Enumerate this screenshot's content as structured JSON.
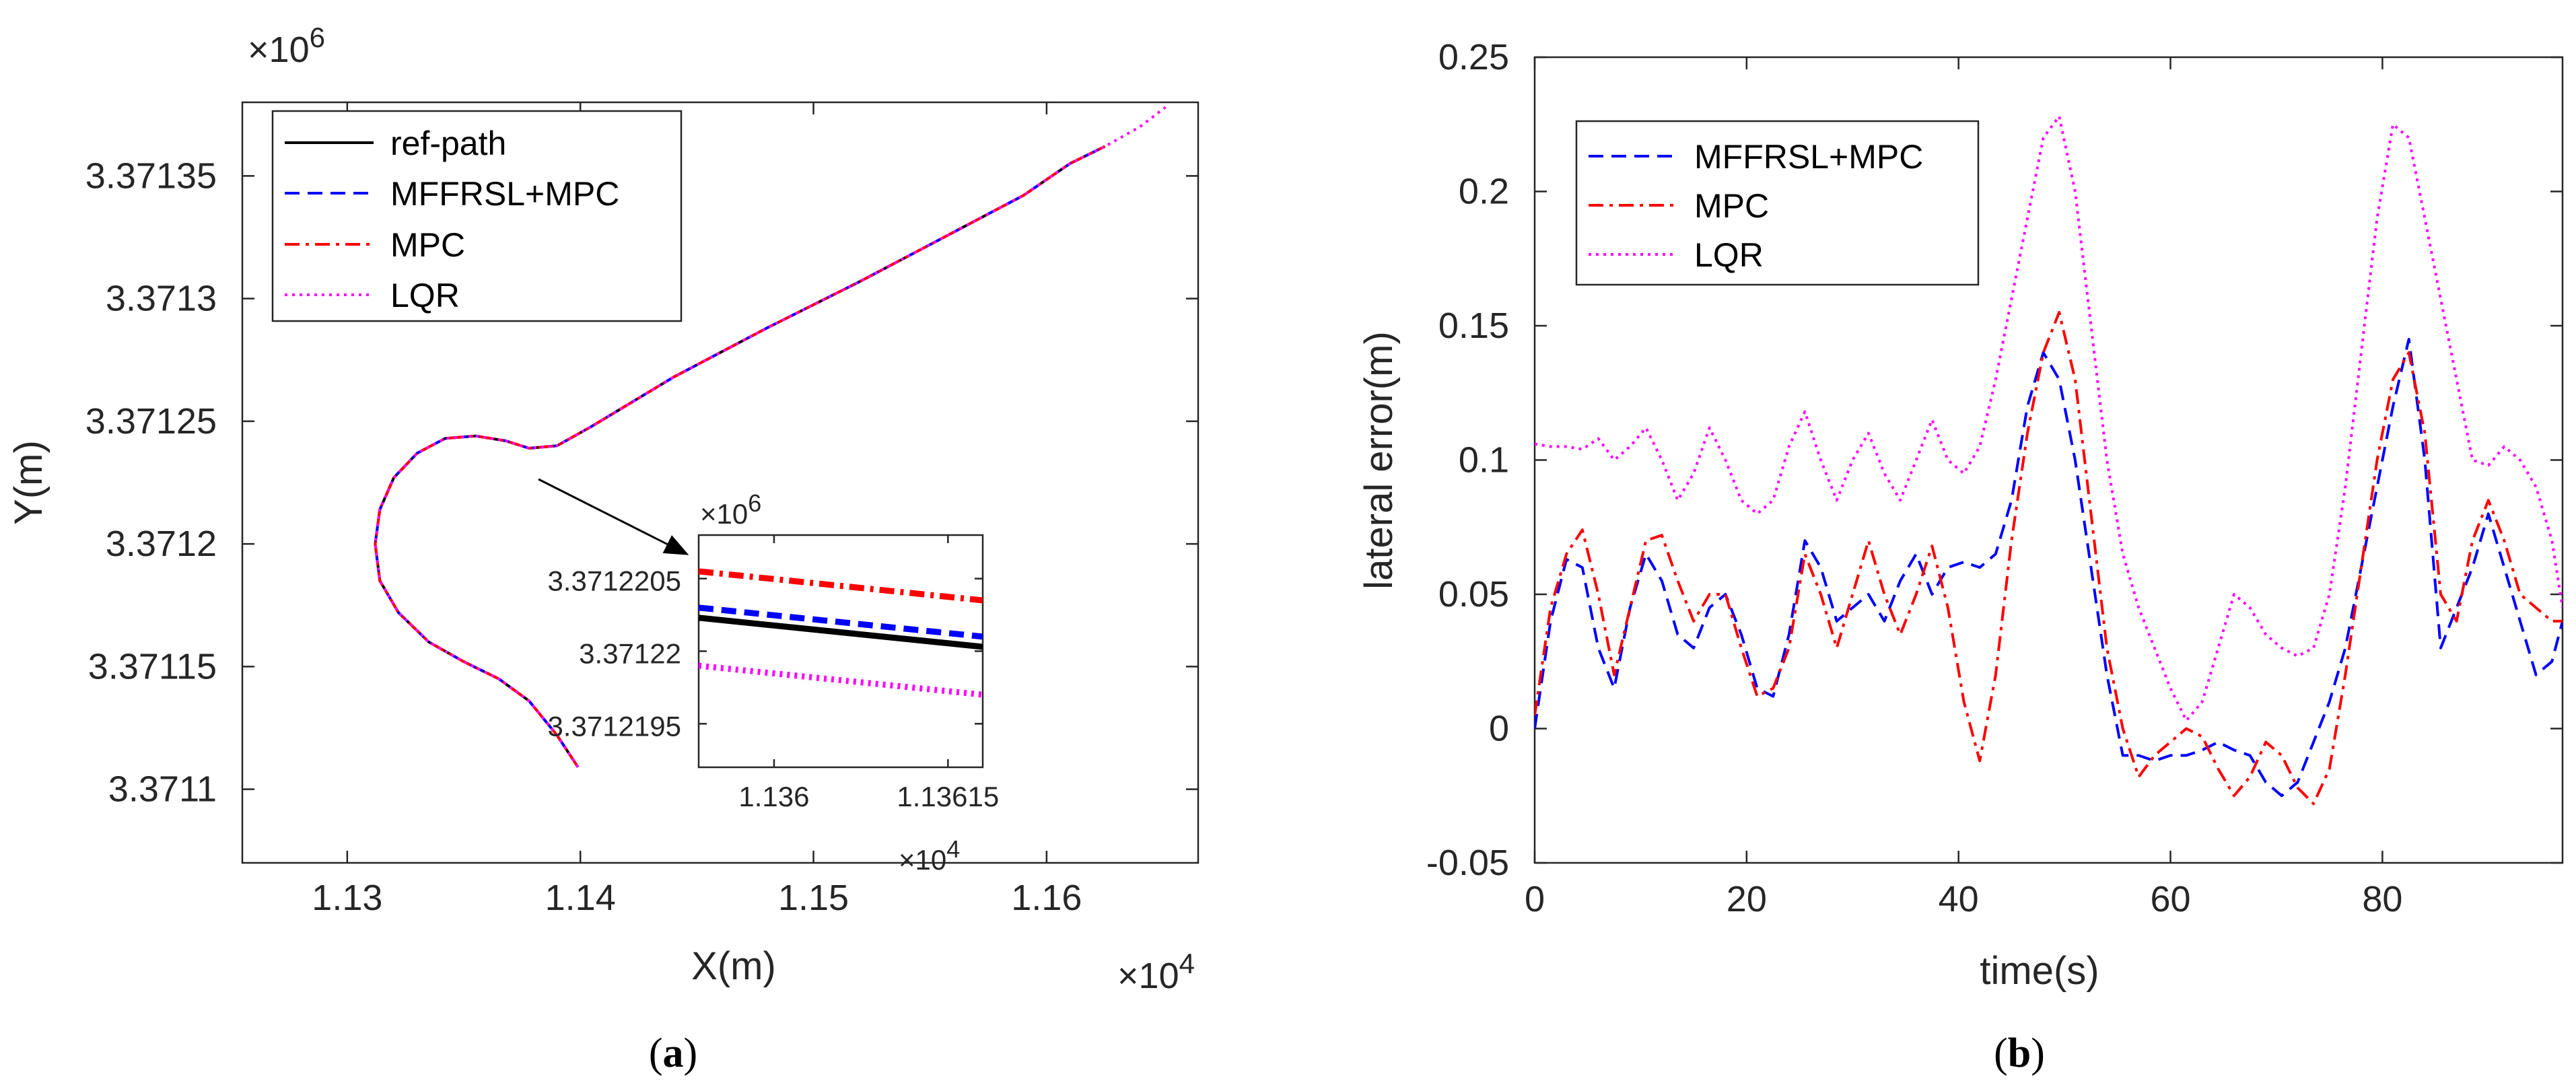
{
  "chart_data": [
    {
      "id": "a",
      "type": "line",
      "caption": "a",
      "xlabel": "X(m)",
      "ylabel": "Y(m)",
      "x_exponent": "×10",
      "x_exponent_power": "4",
      "y_exponent": "×10",
      "y_exponent_power": "6",
      "xlim": [
        1.1255,
        1.1665
      ],
      "ylim": [
        3.37107,
        3.37138
      ],
      "x_ticks": [
        1.13,
        1.14,
        1.15,
        1.16
      ],
      "x_tick_labels": [
        "1.13",
        "1.14",
        "1.15",
        "1.16"
      ],
      "y_ticks": [
        3.3711,
        3.37115,
        3.3712,
        3.37125,
        3.3713,
        3.37135
      ],
      "y_tick_labels": [
        "3.3711",
        "3.37115",
        "3.3712",
        "3.37125",
        "3.3713",
        "3.37135"
      ],
      "legend": {
        "placement": "top-left",
        "entries": [
          "ref-path",
          "MFFRSL+MPC",
          "MPC",
          "LQR"
        ]
      },
      "series": [
        {
          "name": "ref-path",
          "color": "#000000",
          "dash": "solid",
          "x": [
            1.1399,
            1.139,
            1.1378,
            1.1365,
            1.135,
            1.1335,
            1.1322,
            1.1314,
            1.1312,
            1.1314,
            1.132,
            1.133,
            1.1342,
            1.1355,
            1.1368,
            1.1378,
            1.139,
            1.1405,
            1.144,
            1.148,
            1.152,
            1.156,
            1.159,
            1.161,
            1.1625
          ],
          "y": [
            3.371109,
            3.371122,
            3.371136,
            3.371145,
            3.371152,
            3.37116,
            3.371172,
            3.371185,
            3.3712,
            3.371214,
            3.371227,
            3.371237,
            3.371243,
            3.371244,
            3.371242,
            3.371239,
            3.37124,
            3.371248,
            3.371268,
            3.371288,
            3.371307,
            3.371327,
            3.371342,
            3.371355,
            3.371362
          ]
        },
        {
          "name": "MFFRSL+MPC",
          "color": "#0000ff",
          "dash": "dashed",
          "x": [
            1.1399,
            1.139,
            1.1378,
            1.1365,
            1.135,
            1.1335,
            1.1322,
            1.1314,
            1.1312,
            1.1314,
            1.132,
            1.133,
            1.1342,
            1.1355,
            1.1368,
            1.1378,
            1.139,
            1.1405,
            1.144,
            1.148,
            1.152,
            1.156,
            1.159,
            1.161,
            1.1625
          ],
          "y": [
            3.371109,
            3.371122,
            3.371136,
            3.371145,
            3.371152,
            3.37116,
            3.371172,
            3.371185,
            3.3712,
            3.371214,
            3.371227,
            3.371237,
            3.371243,
            3.371244,
            3.371242,
            3.371239,
            3.37124,
            3.371248,
            3.371268,
            3.371288,
            3.371307,
            3.371327,
            3.371342,
            3.371355,
            3.371362
          ]
        },
        {
          "name": "MPC",
          "color": "#ff0000",
          "dash": "dashdot",
          "x": [
            1.1399,
            1.139,
            1.1378,
            1.1365,
            1.135,
            1.1335,
            1.1322,
            1.1314,
            1.1312,
            1.1314,
            1.132,
            1.133,
            1.1342,
            1.1355,
            1.1368,
            1.1378,
            1.139,
            1.1405,
            1.144,
            1.148,
            1.152,
            1.156,
            1.159,
            1.161,
            1.1625
          ],
          "y": [
            3.371109,
            3.371122,
            3.371136,
            3.371145,
            3.371152,
            3.37116,
            3.371172,
            3.371185,
            3.3712,
            3.371214,
            3.371227,
            3.371237,
            3.371243,
            3.371244,
            3.371242,
            3.371239,
            3.37124,
            3.371248,
            3.371268,
            3.371288,
            3.371307,
            3.371327,
            3.371342,
            3.371355,
            3.371362
          ]
        },
        {
          "name": "LQR",
          "color": "#ff00ff",
          "dash": "dotted",
          "x": [
            1.1399,
            1.139,
            1.1378,
            1.1365,
            1.135,
            1.1335,
            1.1322,
            1.1314,
            1.1312,
            1.1314,
            1.132,
            1.133,
            1.1342,
            1.1355,
            1.1368,
            1.1378,
            1.139,
            1.1405,
            1.144,
            1.148,
            1.152,
            1.156,
            1.159,
            1.161,
            1.1625,
            1.164,
            1.1651
          ],
          "y": [
            3.371109,
            3.371122,
            3.371136,
            3.371145,
            3.371152,
            3.37116,
            3.371172,
            3.371185,
            3.3712,
            3.371214,
            3.371227,
            3.371237,
            3.371243,
            3.371244,
            3.371242,
            3.371239,
            3.37124,
            3.371248,
            3.371268,
            3.371288,
            3.371307,
            3.371327,
            3.371342,
            3.371355,
            3.371362,
            3.37137,
            3.371378
          ]
        }
      ],
      "inset": {
        "y_exponent": "×10",
        "y_exponent_power": "6",
        "x_exponent": "×10",
        "x_exponent_power": "4",
        "xlim": [
          1.135935,
          1.13618
        ],
        "ylim": [
          3.3712192,
          3.3712208
        ],
        "x_ticks": [
          1.136,
          1.13615
        ],
        "x_tick_labels": [
          "1.136",
          "1.13615"
        ],
        "y_ticks": [
          3.3712195,
          3.37122,
          3.3712205
        ],
        "y_tick_labels": [
          "3.3712195",
          "3.37122",
          "3.3712205"
        ],
        "series": [
          {
            "name": "ref-path",
            "color": "#000000",
            "dash": "solid",
            "x": [
              1.135935,
              1.13618
            ],
            "y": [
              3.37122023,
              3.37122003
            ]
          },
          {
            "name": "MFFRSL+MPC",
            "color": "#0000ff",
            "dash": "dashed",
            "x": [
              1.135935,
              1.13618
            ],
            "y": [
              3.3712203,
              3.3712201
            ]
          },
          {
            "name": "MPC",
            "color": "#ff0000",
            "dash": "dashdot",
            "x": [
              1.135935,
              1.13618
            ],
            "y": [
              3.37122055,
              3.37122035
            ]
          },
          {
            "name": "LQR",
            "color": "#ff00ff",
            "dash": "dotted",
            "x": [
              1.135935,
              1.13618
            ],
            "y": [
              3.3712199,
              3.3712197
            ]
          }
        ]
      }
    },
    {
      "id": "b",
      "type": "line",
      "caption": "b",
      "xlabel": "time(s)",
      "ylabel": "lateral error(m)",
      "xlim": [
        0,
        97
      ],
      "ylim": [
        -0.05,
        0.25
      ],
      "x_ticks": [
        0,
        20,
        40,
        60,
        80
      ],
      "x_tick_labels": [
        "0",
        "20",
        "40",
        "60",
        "80"
      ],
      "y_ticks": [
        -0.05,
        0,
        0.05,
        0.1,
        0.15,
        0.2,
        0.25
      ],
      "y_tick_labels": [
        "-0.05",
        "0",
        "0.05",
        "0.1",
        "0.15",
        "0.2",
        "0.25"
      ],
      "legend": {
        "placement": "top-left",
        "entries": [
          "MFFRSL+MPC",
          "MPC",
          "LQR"
        ]
      },
      "series": [
        {
          "name": "MFFRSL+MPC",
          "color": "#0000ff",
          "dash": "dashed",
          "x": [
            0,
            1.5,
            3,
            4.5,
            6,
            7.5,
            9,
            10.5,
            12,
            13.5,
            15,
            16.5,
            18,
            19.5,
            21,
            22.5,
            24,
            25.5,
            27,
            28.5,
            30,
            31.5,
            33,
            34.5,
            36,
            37.5,
            39,
            40.5,
            42,
            43.5,
            45,
            46.5,
            48,
            49.5,
            51,
            52.5,
            54,
            55.5,
            57,
            58.5,
            60,
            61.5,
            63,
            64.5,
            66,
            67.5,
            69,
            70.5,
            72,
            73.5,
            75,
            76.5,
            78,
            79.5,
            81,
            82.5,
            84,
            85.5,
            87,
            88.5,
            90,
            91.5,
            93,
            94.5,
            96,
            97
          ],
          "y": [
            0,
            0.04,
            0.063,
            0.06,
            0.03,
            0.015,
            0.045,
            0.065,
            0.055,
            0.035,
            0.03,
            0.045,
            0.05,
            0.035,
            0.015,
            0.012,
            0.035,
            0.07,
            0.06,
            0.04,
            0.045,
            0.05,
            0.04,
            0.055,
            0.065,
            0.05,
            0.06,
            0.062,
            0.06,
            0.065,
            0.085,
            0.12,
            0.14,
            0.13,
            0.1,
            0.06,
            0.02,
            -0.01,
            -0.01,
            -0.012,
            -0.01,
            -0.01,
            -0.008,
            -0.005,
            -0.008,
            -0.01,
            -0.02,
            -0.025,
            -0.02,
            -0.005,
            0.01,
            0.03,
            0.06,
            0.09,
            0.12,
            0.145,
            0.1,
            0.03,
            0.045,
            0.06,
            0.08,
            0.06,
            0.04,
            0.02,
            0.025,
            0.04
          ]
        },
        {
          "name": "MPC",
          "color": "#ff0000",
          "dash": "dashdot",
          "x": [
            0,
            1.5,
            3,
            4.5,
            6,
            7.5,
            9,
            10.5,
            12,
            13.5,
            15,
            16.5,
            18,
            19.5,
            21,
            22.5,
            24,
            25.5,
            27,
            28.5,
            30,
            31.5,
            33,
            34.5,
            36,
            37.5,
            39,
            40.5,
            42,
            43.5,
            45,
            46.5,
            48,
            49.5,
            51,
            52.5,
            54,
            55.5,
            57,
            58.5,
            60,
            61.5,
            63,
            64.5,
            66,
            67.5,
            69,
            70.5,
            72,
            73.5,
            75,
            76.5,
            78,
            79.5,
            81,
            82.5,
            84,
            85.5,
            87,
            88.5,
            90,
            91.5,
            93,
            94.5,
            96,
            97
          ],
          "y": [
            0.005,
            0.045,
            0.065,
            0.074,
            0.05,
            0.02,
            0.045,
            0.07,
            0.072,
            0.055,
            0.04,
            0.05,
            0.05,
            0.03,
            0.012,
            0.015,
            0.03,
            0.065,
            0.05,
            0.03,
            0.05,
            0.07,
            0.05,
            0.035,
            0.05,
            0.068,
            0.045,
            0.01,
            -0.012,
            0.02,
            0.07,
            0.11,
            0.14,
            0.155,
            0.13,
            0.08,
            0.03,
            0.0,
            -0.018,
            -0.01,
            -0.005,
            0.0,
            -0.003,
            -0.015,
            -0.025,
            -0.018,
            -0.005,
            -0.01,
            -0.022,
            -0.028,
            -0.015,
            0.02,
            0.06,
            0.1,
            0.13,
            0.14,
            0.11,
            0.05,
            0.04,
            0.07,
            0.085,
            0.07,
            0.05,
            0.045,
            0.04,
            0.04
          ]
        },
        {
          "name": "LQR",
          "color": "#ff00ff",
          "dash": "dotted",
          "x": [
            0,
            1.5,
            3,
            4.5,
            6,
            7.5,
            9,
            10.5,
            12,
            13.5,
            15,
            16.5,
            18,
            19.5,
            21,
            22.5,
            24,
            25.5,
            27,
            28.5,
            30,
            31.5,
            33,
            34.5,
            36,
            37.5,
            39,
            40.5,
            42,
            43.5,
            45,
            46.5,
            48,
            49.5,
            51,
            52.5,
            54,
            55.5,
            57,
            58.5,
            60,
            61.5,
            63,
            64.5,
            66,
            67.5,
            69,
            70.5,
            72,
            73.5,
            75,
            76.5,
            78,
            79.5,
            81,
            82.5,
            84,
            85.5,
            87,
            88.5,
            90,
            91.5,
            93,
            94.5,
            96,
            97
          ],
          "y": [
            0.106,
            0.105,
            0.105,
            0.104,
            0.108,
            0.1,
            0.105,
            0.112,
            0.1,
            0.085,
            0.095,
            0.112,
            0.1,
            0.085,
            0.08,
            0.085,
            0.105,
            0.118,
            0.1,
            0.085,
            0.1,
            0.11,
            0.095,
            0.085,
            0.1,
            0.115,
            0.1,
            0.095,
            0.105,
            0.13,
            0.16,
            0.19,
            0.22,
            0.228,
            0.2,
            0.15,
            0.1,
            0.065,
            0.045,
            0.03,
            0.015,
            0.003,
            0.01,
            0.03,
            0.05,
            0.045,
            0.035,
            0.03,
            0.027,
            0.03,
            0.05,
            0.09,
            0.14,
            0.19,
            0.225,
            0.22,
            0.19,
            0.16,
            0.13,
            0.1,
            0.098,
            0.105,
            0.1,
            0.09,
            0.07,
            0.045
          ]
        }
      ]
    }
  ]
}
